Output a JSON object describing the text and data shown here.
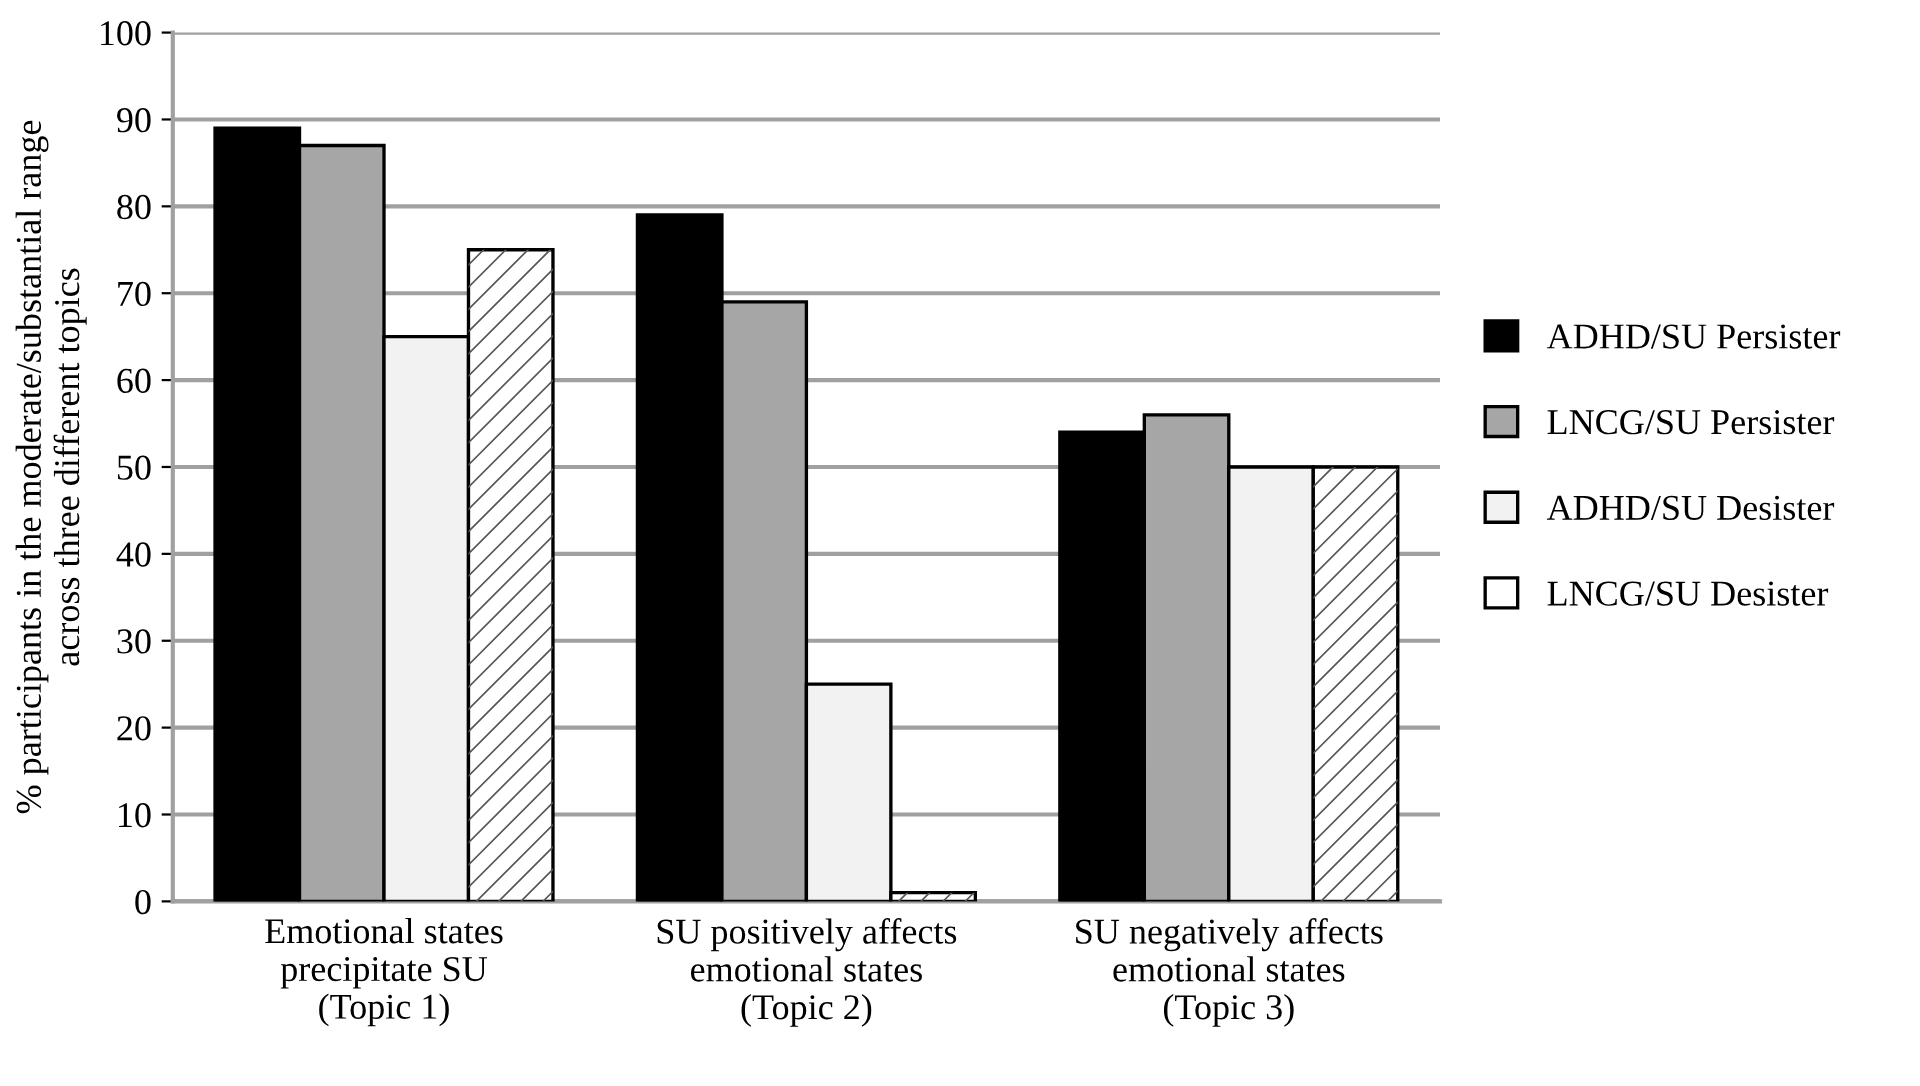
{
  "chart_data": {
    "type": "bar",
    "ylabel": "% participants in the moderate/substantial range\nacross three different topics",
    "categories": [
      "Emotional states\nprecipitate SU\n(Topic 1)",
      "SU positively affects\nemotional states\n(Topic 2)",
      "SU negatively affects\nemotional states\n(Topic 3)"
    ],
    "series": [
      {
        "name": "ADHD/SU Persister",
        "color": "#000000",
        "values": [
          89,
          79,
          54
        ]
      },
      {
        "name": "LNCG/SU Persister",
        "color": "#a6a6a6",
        "values": [
          87,
          69,
          56
        ]
      },
      {
        "name": "ADHD/SU Desister",
        "color": "#f2f2f2",
        "values": [
          65,
          25,
          50
        ]
      },
      {
        "name": "LNCG/SU Desister",
        "color": "#ffffff",
        "values": [
          75,
          1,
          50
        ]
      }
    ],
    "ylim": [
      0,
      100
    ],
    "yticks": [
      0,
      10,
      20,
      30,
      40,
      50,
      60,
      70,
      80,
      90,
      100
    ],
    "grid": "y",
    "legend": "right"
  }
}
